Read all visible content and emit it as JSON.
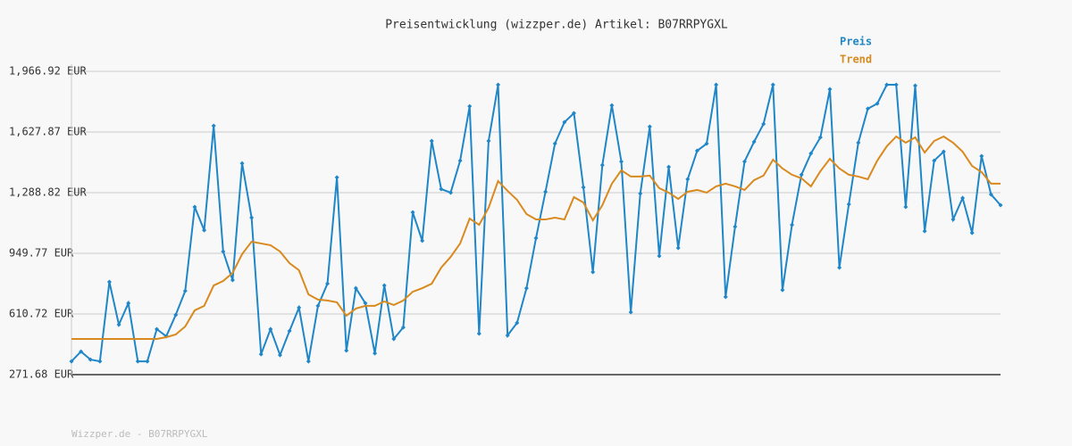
{
  "chart_data": {
    "type": "line",
    "title": "Preisentwicklung (wizzper.de) Artikel: B07RRPYGXL",
    "footer": "Wizzper.de - B07RRPYGXL",
    "ylim": [
      271.68,
      1966.92
    ],
    "yticks": [
      {
        "value": 271.68,
        "label": "271.68 EUR"
      },
      {
        "value": 610.72,
        "label": "610.72 EUR"
      },
      {
        "value": 949.77,
        "label": "949.77 EUR"
      },
      {
        "value": 1288.82,
        "label": "1,288.82 EUR"
      },
      {
        "value": 1627.87,
        "label": "1,627.87 EUR"
      },
      {
        "value": 1966.92,
        "label": "1,966.92 EUR"
      }
    ],
    "grid": true,
    "legend": "top-right",
    "series": [
      {
        "name": "Preis",
        "color": "#1f86c8",
        "markers": true,
        "values": [
          346,
          401,
          356,
          346,
          790,
          551,
          671,
          346,
          346,
          526,
          486,
          606,
          740,
          1209,
          1079,
          1663,
          960,
          800,
          1453,
          1149,
          386,
          526,
          381,
          516,
          646,
          346,
          656,
          780,
          1374,
          406,
          755,
          671,
          391,
          770,
          471,
          536,
          1179,
          1020,
          1578,
          1309,
          1289,
          1468,
          1772,
          501,
          1578,
          1892,
          491,
          561,
          755,
          1035,
          1294,
          1563,
          1683,
          1733,
          1319,
          845,
          1443,
          1777,
          1463,
          621,
          1284,
          1658,
          935,
          1433,
          980,
          1364,
          1523,
          1563,
          1892,
          706,
          1099,
          1463,
          1573,
          1673,
          1892,
          745,
          1109,
          1389,
          1508,
          1598,
          1867,
          870,
          1224,
          1568,
          1758,
          1787,
          1892,
          1892,
          1209,
          1887,
          1074,
          1468,
          1518,
          1139,
          1259,
          1064,
          1493,
          1279,
          1219
        ]
      },
      {
        "name": "Trend",
        "color": "#d98a1e",
        "markers": false,
        "values": [
          471,
          471,
          471,
          471,
          471,
          471,
          471,
          471,
          471,
          471,
          481,
          496,
          541,
          631,
          656,
          770,
          795,
          840,
          945,
          1015,
          1005,
          995,
          960,
          895,
          855,
          720,
          691,
          686,
          676,
          601,
          641,
          656,
          656,
          681,
          661,
          686,
          735,
          755,
          780,
          870,
          930,
          1005,
          1144,
          1109,
          1204,
          1354,
          1299,
          1249,
          1169,
          1139,
          1139,
          1149,
          1139,
          1264,
          1234,
          1134,
          1219,
          1339,
          1414,
          1379,
          1379,
          1384,
          1314,
          1289,
          1254,
          1294,
          1304,
          1289,
          1324,
          1339,
          1324,
          1304,
          1359,
          1384,
          1473,
          1424,
          1389,
          1369,
          1324,
          1409,
          1478,
          1424,
          1389,
          1379,
          1364,
          1468,
          1548,
          1603,
          1568,
          1598,
          1513,
          1578,
          1603,
          1568,
          1518,
          1438,
          1404,
          1339,
          1339
        ]
      }
    ]
  }
}
